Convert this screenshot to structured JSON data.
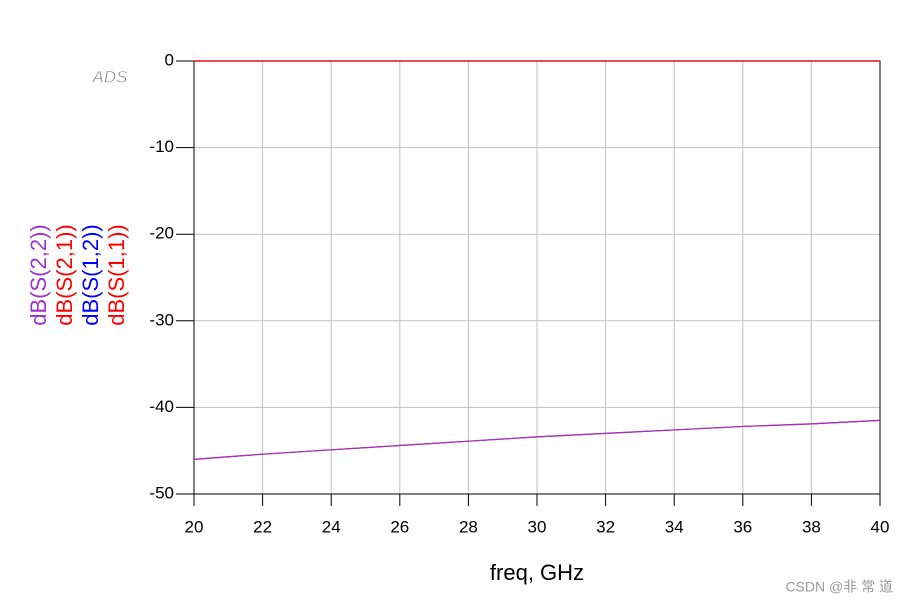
{
  "chart_data": {
    "type": "line",
    "x_label": "freq, GHz",
    "annotations": [
      "ADS",
      "CSDN @非 常 道"
    ],
    "x": [
      20,
      22,
      24,
      26,
      28,
      30,
      32,
      34,
      36,
      38,
      40
    ],
    "series": [
      {
        "name": "dB(S(2,2))",
        "color": "#9933cc",
        "values": [
          -46.0,
          -45.4,
          -44.9,
          -44.4,
          -43.9,
          -43.4,
          -43.0,
          -42.6,
          -42.2,
          -41.9,
          -41.5
        ]
      },
      {
        "name": "dB(S(2,1))",
        "color": "#ff0000",
        "values": [
          0,
          0,
          0,
          0,
          0,
          0,
          0,
          0,
          0,
          0,
          0
        ]
      },
      {
        "name": "dB(S(1,2))",
        "color": "#0000ff",
        "values": [
          0,
          0,
          0,
          0,
          0,
          0,
          0,
          0,
          0,
          0,
          0
        ]
      },
      {
        "name": "dB(S(1,1))",
        "color": "#ff0000",
        "values": [
          -46.0,
          -45.4,
          -44.9,
          -44.4,
          -43.9,
          -43.4,
          -43.0,
          -42.6,
          -42.2,
          -41.9,
          -41.5
        ]
      }
    ],
    "xlim": [
      20,
      40
    ],
    "xticks": [
      20,
      22,
      24,
      26,
      28,
      30,
      32,
      34,
      36,
      38,
      40
    ],
    "ylim": [
      -50,
      0
    ],
    "yticks": [
      -50,
      -40,
      -30,
      -20,
      -10,
      0
    ],
    "grid": true
  }
}
